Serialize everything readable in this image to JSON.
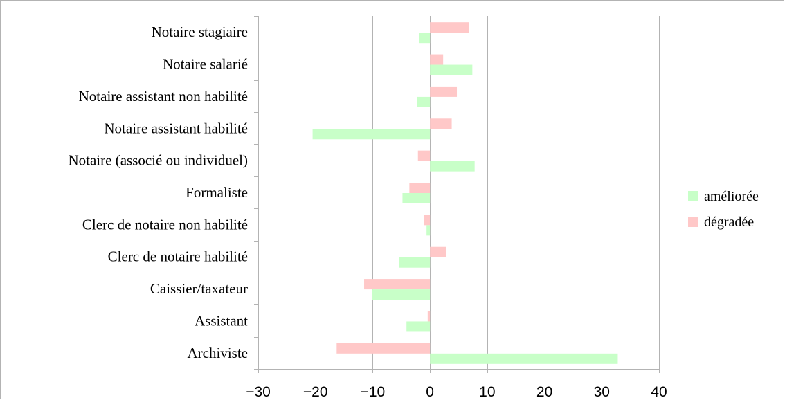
{
  "chart_data": {
    "type": "bar",
    "orientation": "horizontal",
    "categories": [
      "Notaire stagiaire",
      "Notaire salarié",
      "Notaire assistant non habilité",
      "Notaire assistant habilité",
      "Notaire (associé ou individuel)",
      "Formaliste",
      "Clerc de notaire non habilité",
      "Clerc de notaire habilité",
      "Caissier/taxateur",
      "Assistant",
      "Archiviste"
    ],
    "series": [
      {
        "name": "dégradée",
        "color": "#ffc8c8",
        "values": [
          6.8,
          2.3,
          4.7,
          3.8,
          -2.1,
          -3.6,
          -1.1,
          2.8,
          -11.5,
          -0.4,
          -16.3
        ]
      },
      {
        "name": "améliorée",
        "color": "#c8ffc8",
        "values": [
          -1.9,
          7.4,
          -2.2,
          -20.5,
          7.8,
          -4.8,
          -0.6,
          -5.4,
          -10.1,
          -4.1,
          32.8
        ]
      }
    ],
    "xlim": [
      -30,
      40
    ],
    "xticks": [
      -30,
      -20,
      -10,
      0,
      10,
      20,
      30,
      40
    ],
    "grid": true,
    "legend_position": "right",
    "legend_order": [
      "améliorée",
      "dégradée"
    ]
  }
}
